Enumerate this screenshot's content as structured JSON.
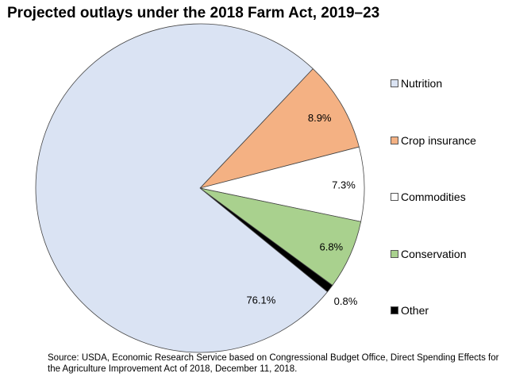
{
  "chart_data": {
    "type": "pie",
    "title": "Projected outlays under the 2018 Farm Act, 2019–23",
    "slices": [
      {
        "label": "Crop insurance",
        "value": 8.9,
        "value_label": "8.9%",
        "color": "#f4b183"
      },
      {
        "label": "Commodities",
        "value": 7.3,
        "value_label": "7.3%",
        "color": "#ffffff"
      },
      {
        "label": "Conservation",
        "value": 6.8,
        "value_label": "6.8%",
        "color": "#a9d18e"
      },
      {
        "label": "Other",
        "value": 0.8,
        "value_label": "0.8%",
        "color": "#000000"
      },
      {
        "label": "Nutrition",
        "value": 76.1,
        "value_label": "76.1%",
        "color": "#dae3f3"
      }
    ],
    "legend": [
      "Nutrition",
      "Crop insurance",
      "Commodities",
      "Conservation",
      "Other"
    ],
    "legend_placement": "right"
  },
  "source": "Source: USDA, Economic Research Service based on Congressional Budget Office, Direct Spending Effects for the Agriculture Improvement Act of 2018, December 11, 2018."
}
